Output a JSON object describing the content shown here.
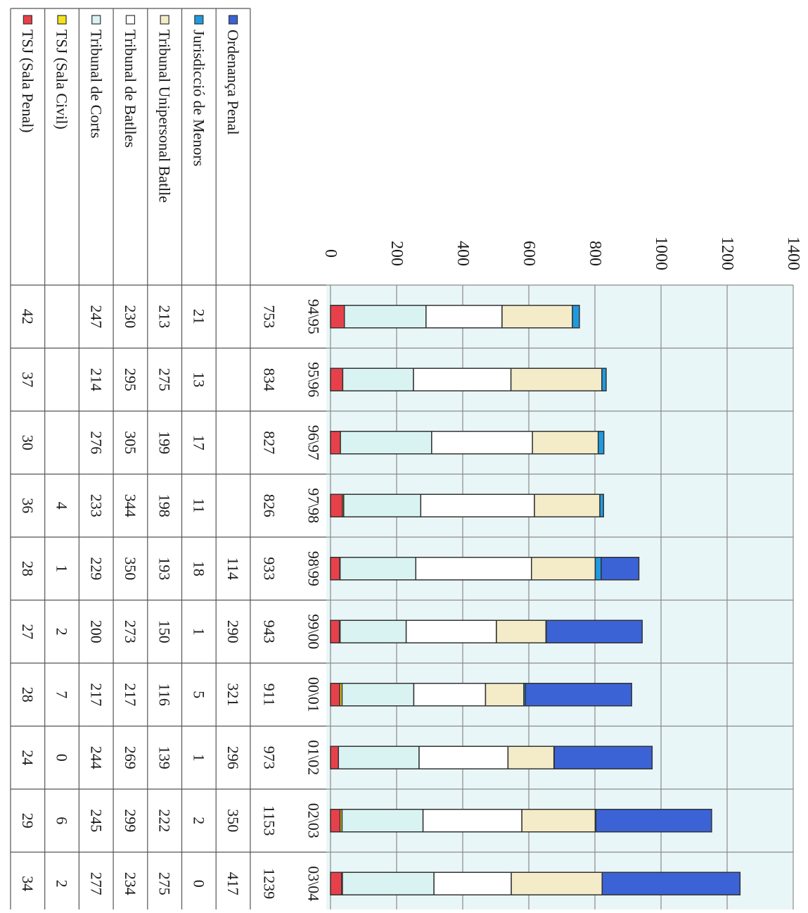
{
  "chart_data": {
    "type": "bar",
    "stacked": true,
    "orientation": "rotated-horizontal",
    "title": "",
    "xlabel": "",
    "ylabel": "",
    "ylim": [
      0,
      1400
    ],
    "yticks": [
      "0",
      "200",
      "400",
      "600",
      "800",
      "1000",
      "1200",
      "1400"
    ],
    "grid": true,
    "legend_placement": "left-table",
    "categories": [
      "94\\95",
      "95\\96",
      "96\\97",
      "97\\98",
      "98\\99",
      "99\\00",
      "00\\01",
      "01\\02",
      "02\\03",
      "03\\04"
    ],
    "totals": [
      "753",
      "834",
      "827",
      "826",
      "933",
      "943",
      "911",
      "973",
      "1153",
      "1239"
    ],
    "series": [
      {
        "name": "TSJ (Sala Penal)",
        "color": "#e8404a",
        "values": [
          42,
          37,
          30,
          36,
          28,
          27,
          28,
          24,
          29,
          34
        ],
        "labels": [
          "42",
          "37",
          "30",
          "36",
          "28",
          "27",
          "28",
          "24",
          "29",
          "34"
        ]
      },
      {
        "name": "TSJ (Sala Civil)",
        "color": "#f2e21a",
        "values": [
          0,
          0,
          0,
          4,
          1,
          2,
          7,
          0,
          6,
          2
        ],
        "labels": [
          "",
          "",
          "",
          "4",
          "1",
          "2",
          "7",
          "0",
          "6",
          "2"
        ]
      },
      {
        "name": "Tribunal de Corts",
        "color": "#d9f3f3",
        "values": [
          247,
          214,
          276,
          233,
          229,
          200,
          217,
          244,
          245,
          277
        ],
        "labels": [
          "247",
          "214",
          "276",
          "233",
          "229",
          "200",
          "217",
          "244",
          "245",
          "277"
        ]
      },
      {
        "name": "Tribunal de Batlles",
        "color": "#ffffff",
        "values": [
          230,
          295,
          305,
          344,
          350,
          273,
          217,
          269,
          299,
          234
        ],
        "labels": [
          "230",
          "295",
          "305",
          "344",
          "350",
          "273",
          "217",
          "269",
          "299",
          "234"
        ]
      },
      {
        "name": "Tribunal Unipersonal Batlle",
        "color": "#f4ebc8",
        "values": [
          213,
          275,
          199,
          198,
          193,
          150,
          116,
          139,
          222,
          275
        ],
        "labels": [
          "213",
          "275",
          "199",
          "198",
          "193",
          "150",
          "116",
          "139",
          "222",
          "275"
        ]
      },
      {
        "name": "Jurisdicció de Menors",
        "color": "#1e9be0",
        "values": [
          21,
          13,
          17,
          11,
          18,
          1,
          5,
          1,
          2,
          0
        ],
        "labels": [
          "21",
          "13",
          "17",
          "11",
          "18",
          "1",
          "5",
          "1",
          "2",
          "0"
        ]
      },
      {
        "name": "Ordenança Penal",
        "color": "#3b63d6",
        "values": [
          0,
          0,
          0,
          0,
          114,
          290,
          321,
          296,
          350,
          417
        ],
        "labels": [
          "",
          "",
          "",
          "",
          "114",
          "290",
          "321",
          "296",
          "350",
          "417"
        ]
      }
    ],
    "colors": {
      "plot_background": "#e9f6f7",
      "grid": "#8a8a8a",
      "bar_outline": "#333333",
      "table_line": "#555555"
    }
  }
}
